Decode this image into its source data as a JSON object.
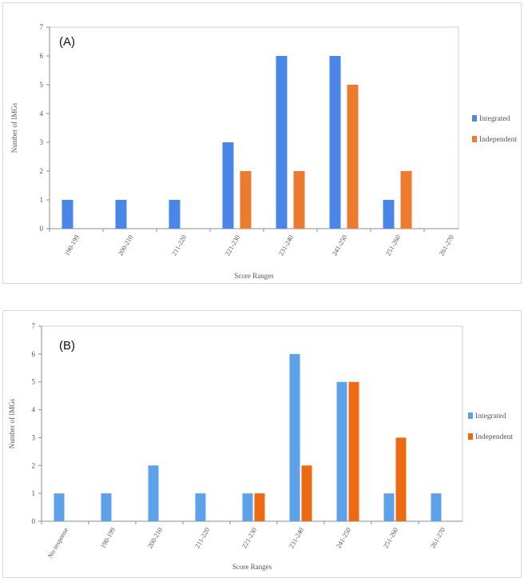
{
  "chart_data": [
    {
      "id": "A",
      "type": "bar",
      "panel_label": "(A)",
      "categories": [
        "190-199",
        "200-210",
        "211-220",
        "221-230",
        "231-240",
        "241-250",
        "251-260",
        "261-270"
      ],
      "series": [
        {
          "name": "Integrated",
          "color": "#4a86e8",
          "values": [
            1,
            1,
            1,
            3,
            6,
            6,
            1,
            0
          ]
        },
        {
          "name": "Independent",
          "color": "#ec7a2f",
          "values": [
            0,
            0,
            0,
            2,
            2,
            5,
            2,
            0
          ]
        }
      ],
      "xlabel": "Score Ranges",
      "ylabel": "Number of IMGs",
      "ylim": [
        0,
        7
      ],
      "yticks": [
        0,
        1,
        2,
        3,
        4,
        5,
        6,
        7
      ],
      "legend_position": "right"
    },
    {
      "id": "B",
      "type": "bar",
      "panel_label": "(B)",
      "categories": [
        "No response",
        "190-199",
        "200-210",
        "211-220",
        "221-230",
        "231-240",
        "241-250",
        "251-260",
        "261-270"
      ],
      "series": [
        {
          "name": "Integrated",
          "color": "#5da2e8",
          "values": [
            1,
            1,
            2,
            1,
            1,
            6,
            5,
            1,
            1
          ]
        },
        {
          "name": "Independent",
          "color": "#ec6a12",
          "values": [
            0,
            0,
            0,
            0,
            1,
            2,
            5,
            3,
            0
          ]
        }
      ],
      "xlabel": "Score Ranges",
      "ylabel": "Number of IMGs",
      "ylim": [
        0,
        7
      ],
      "yticks": [
        0,
        1,
        2,
        3,
        4,
        5,
        6,
        7
      ],
      "legend_position": "right"
    }
  ]
}
